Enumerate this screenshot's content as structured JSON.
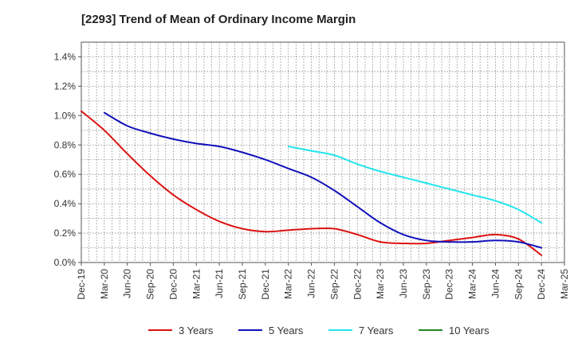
{
  "chart_data": {
    "type": "line",
    "title": "[2293]  Trend of Mean of Ordinary Income Margin",
    "xlabel": "",
    "ylabel": "",
    "y_unit": "%",
    "ylim": [
      0,
      1.5
    ],
    "y_ticks": [
      "0.0%",
      "0.2%",
      "0.4%",
      "0.6%",
      "0.8%",
      "1.0%",
      "1.2%",
      "1.4%"
    ],
    "x_ticks": [
      "Dec-19",
      "Mar-20",
      "Jun-20",
      "Sep-20",
      "Dec-20",
      "Mar-21",
      "Jun-21",
      "Sep-21",
      "Dec-21",
      "Mar-22",
      "Jun-22",
      "Sep-22",
      "Dec-22",
      "Mar-23",
      "Jun-23",
      "Sep-23",
      "Dec-23",
      "Mar-24",
      "Jun-24",
      "Sep-24",
      "Dec-24",
      "Mar-25"
    ],
    "grid": true,
    "legend_position": "bottom",
    "series": [
      {
        "name": "3 Years",
        "color": "#dd1111",
        "x": [
          "Dec-19",
          "Mar-20",
          "Jun-20",
          "Sep-20",
          "Dec-20",
          "Mar-21",
          "Jun-21",
          "Sep-21",
          "Dec-21",
          "Mar-22",
          "Jun-22",
          "Sep-22",
          "Dec-22",
          "Mar-23",
          "Jun-23",
          "Sep-23",
          "Dec-23",
          "Mar-24",
          "Jun-24",
          "Sep-24",
          "Dec-24"
        ],
        "values": [
          1.03,
          0.9,
          0.74,
          0.59,
          0.46,
          0.36,
          0.28,
          0.23,
          0.21,
          0.22,
          0.23,
          0.23,
          0.19,
          0.14,
          0.13,
          0.13,
          0.15,
          0.17,
          0.19,
          0.16,
          0.05
        ]
      },
      {
        "name": "5 Years",
        "color": "#1111bb",
        "x": [
          "Mar-20",
          "Jun-20",
          "Sep-20",
          "Dec-20",
          "Mar-21",
          "Jun-21",
          "Sep-21",
          "Dec-21",
          "Mar-22",
          "Jun-22",
          "Sep-22",
          "Dec-22",
          "Mar-23",
          "Jun-23",
          "Sep-23",
          "Dec-23",
          "Mar-24",
          "Jun-24",
          "Sep-24",
          "Dec-24"
        ],
        "values": [
          1.02,
          0.93,
          0.88,
          0.84,
          0.81,
          0.79,
          0.75,
          0.7,
          0.64,
          0.58,
          0.49,
          0.38,
          0.27,
          0.19,
          0.15,
          0.14,
          0.14,
          0.15,
          0.14,
          0.1
        ]
      },
      {
        "name": "7 Years",
        "color": "#22e5ee",
        "x": [
          "Mar-22",
          "Jun-22",
          "Sep-22",
          "Dec-22",
          "Mar-23",
          "Jun-23",
          "Sep-23",
          "Dec-23",
          "Mar-24",
          "Jun-24",
          "Sep-24",
          "Dec-24"
        ],
        "values": [
          0.79,
          0.76,
          0.73,
          0.67,
          0.62,
          0.58,
          0.54,
          0.5,
          0.46,
          0.42,
          0.36,
          0.27
        ]
      },
      {
        "name": "10 Years",
        "color": "#228822",
        "x": [],
        "values": []
      }
    ]
  }
}
